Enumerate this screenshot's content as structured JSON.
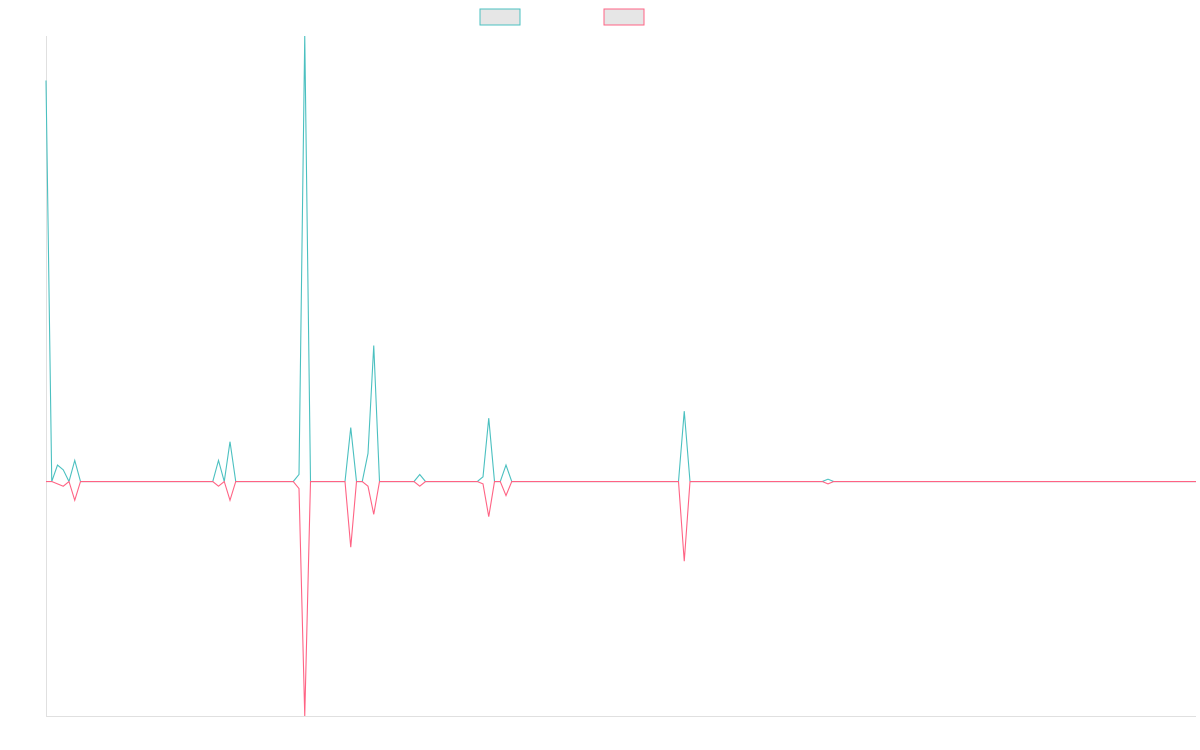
{
  "chart_data": {
    "type": "line",
    "title": "",
    "xlabel": "",
    "ylabel": "",
    "ylim": [
      -100,
      190
    ],
    "grid": false,
    "legend": "top-center",
    "colors": {
      "series_a": "#4bc0c0",
      "series_b": "#ff6384",
      "axis": "#e0e0e0",
      "legend_fill": "#e6e6e6"
    },
    "x": [
      0,
      1,
      2,
      3,
      4,
      5,
      6,
      7,
      8,
      9,
      10,
      11,
      12,
      13,
      14,
      15,
      16,
      17,
      18,
      19,
      20,
      21,
      22,
      23,
      24,
      25,
      26,
      27,
      28,
      29,
      30,
      31,
      32,
      33,
      34,
      35,
      36,
      37,
      38,
      39,
      40,
      41,
      42,
      43,
      44,
      45,
      46,
      47,
      48,
      49,
      50,
      51,
      52,
      53,
      54,
      55,
      56,
      57,
      58,
      59,
      60,
      61,
      62,
      63,
      64,
      65,
      66,
      67,
      68,
      69,
      70,
      71,
      72,
      73,
      74,
      75,
      76,
      77,
      78,
      79,
      80,
      81,
      82,
      83,
      84,
      85,
      86,
      87,
      88,
      89,
      90,
      91,
      92,
      93,
      94,
      95,
      96,
      97,
      98,
      99,
      100,
      101,
      102,
      103,
      104,
      105,
      106,
      107,
      108,
      109,
      110,
      111,
      112,
      113,
      114,
      115,
      116,
      117,
      118,
      119,
      120,
      121,
      122,
      123,
      124,
      125,
      126,
      127,
      128,
      129,
      130,
      131,
      132,
      133,
      134,
      135,
      136,
      137,
      138,
      139,
      140,
      141,
      142,
      143,
      144,
      145,
      146,
      147,
      148,
      149,
      150,
      151,
      152,
      153,
      154,
      155,
      156,
      157,
      158,
      159,
      160,
      161,
      162,
      163,
      164,
      165,
      166,
      167,
      168,
      169,
      170,
      171,
      172,
      173,
      174,
      175,
      176,
      177,
      178,
      179,
      180,
      181,
      182,
      183,
      184,
      185,
      186,
      187,
      188,
      189,
      190,
      191,
      192,
      193,
      194,
      195,
      196,
      197,
      198,
      199,
      200
    ],
    "series": [
      {
        "values": [
          171,
          0,
          7,
          5,
          0,
          9,
          0,
          0,
          0,
          0,
          0,
          0,
          0,
          0,
          0,
          0,
          0,
          0,
          0,
          0,
          0,
          0,
          0,
          0,
          0,
          0,
          0,
          0,
          0,
          0,
          9,
          0,
          17,
          0,
          0,
          0,
          0,
          0,
          0,
          0,
          0,
          0,
          0,
          0,
          0,
          0,
          0,
          0,
          0,
          0,
          0,
          0,
          0,
          0,
          0,
          0,
          0,
          0,
          0,
          0,
          0,
          0,
          0,
          0,
          0,
          3,
          0,
          0,
          0,
          0,
          0,
          0,
          0,
          0,
          0,
          0,
          2,
          0,
          0,
          0,
          0,
          0,
          0,
          0,
          0,
          0,
          0,
          0,
          0,
          0,
          0,
          0,
          0,
          0,
          0,
          0,
          0,
          0,
          0,
          0,
          0,
          0,
          0,
          0,
          0,
          0,
          0,
          0,
          0,
          0,
          0,
          0,
          0,
          0,
          0,
          0,
          0,
          0,
          0,
          0,
          0,
          0,
          0,
          0,
          0,
          0,
          0,
          0,
          0,
          0,
          0,
          0,
          0,
          0,
          0,
          0,
          0,
          0,
          0,
          0,
          0,
          0,
          0,
          0,
          0,
          0,
          0,
          0,
          0,
          0,
          0,
          0,
          0,
          0,
          0,
          0,
          0,
          0,
          0,
          0,
          0,
          0,
          0,
          0,
          0,
          0,
          0,
          0,
          0,
          0,
          0,
          0,
          0,
          0,
          0,
          0,
          0,
          0,
          0,
          0,
          0,
          0,
          0,
          0,
          0,
          0,
          0,
          0,
          0,
          0,
          0,
          0,
          0,
          0,
          0,
          0,
          0,
          0,
          0,
          0,
          0
        ]
      },
      {
        "values": [
          0,
          0,
          -1,
          -2,
          0,
          -8,
          0,
          0,
          0,
          0,
          0,
          0,
          0,
          0,
          0,
          0,
          0,
          0,
          0,
          0,
          0,
          0,
          0,
          0,
          0,
          0,
          0,
          0,
          0,
          0,
          -2,
          0,
          -8,
          0,
          0,
          0,
          0,
          0,
          0,
          0,
          0,
          0,
          0,
          0,
          0,
          0,
          0,
          0,
          0,
          0,
          0,
          0,
          0,
          0,
          0,
          0,
          0,
          0,
          0,
          0,
          0,
          0,
          0,
          0,
          0,
          -2,
          0,
          0,
          0,
          0,
          0,
          0,
          0,
          0,
          0,
          0,
          -1,
          0,
          0,
          0,
          0,
          0,
          0,
          0,
          0,
          0,
          0,
          0,
          0,
          0,
          0,
          0,
          0,
          0,
          0,
          0,
          0,
          0,
          0,
          0,
          0,
          0,
          0,
          0,
          0,
          0,
          0,
          0,
          0,
          0,
          0,
          0,
          0,
          0,
          0,
          0,
          0,
          0,
          0,
          0,
          0,
          0,
          0,
          0,
          0,
          0,
          0,
          0,
          0,
          0,
          0,
          0,
          0,
          0,
          0,
          0,
          0,
          0,
          0,
          0,
          0,
          0,
          0,
          0,
          0,
          0,
          0,
          0,
          0,
          0,
          0,
          0,
          0,
          0,
          0,
          0,
          0,
          0,
          0,
          0,
          0,
          0,
          0,
          0,
          0,
          0,
          0,
          0,
          0,
          0,
          0,
          0,
          0,
          0,
          0,
          0,
          0,
          0,
          0,
          0,
          0,
          0,
          0,
          0,
          0,
          0,
          0,
          0,
          0,
          0,
          0,
          0,
          0,
          0,
          0,
          0,
          0,
          0,
          0,
          0,
          0
        ]
      }
    ],
    "spikes": [
      {
        "x": 45,
        "a": 190,
        "b": -100
      },
      {
        "x": 53,
        "a": 23,
        "b": -28
      },
      {
        "x": 56,
        "a": 12,
        "b": -2
      },
      {
        "x": 57,
        "a": 58,
        "b": -14
      },
      {
        "x": 77,
        "a": 27,
        "b": -15
      },
      {
        "x": 80,
        "a": 7,
        "b": -6
      },
      {
        "x": 111,
        "a": 30,
        "b": -34
      },
      {
        "x": 136,
        "a": 1,
        "b": -1
      },
      {
        "x": 44,
        "a": 3,
        "b": -3
      }
    ]
  }
}
